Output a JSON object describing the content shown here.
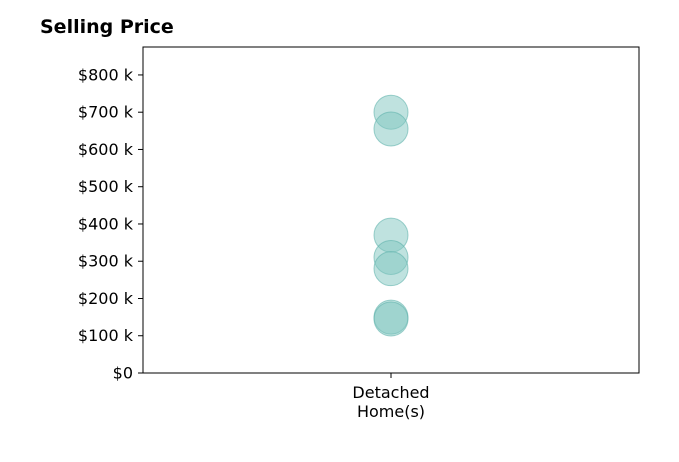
{
  "chart_data": {
    "type": "scatter",
    "title": "Selling Price",
    "xlabel": "",
    "ylabel": "",
    "categories": [
      [
        "Detached",
        "Home(s)"
      ]
    ],
    "series": [
      {
        "category_index": 0,
        "values": [
          700000,
          655000,
          370000,
          310000,
          280000,
          150000,
          145000
        ]
      }
    ],
    "yticks": [
      0,
      100000,
      200000,
      300000,
      400000,
      500000,
      600000,
      700000,
      800000
    ],
    "ytick_labels": [
      "$0",
      "$100 k",
      "$200 k",
      "$300 k",
      "$400 k",
      "$500 k",
      "$600 k",
      "$700 k",
      "$800 k"
    ],
    "ylim": [
      0,
      875000
    ],
    "grid": false,
    "legend": "none",
    "marker_color": "#80c6c0",
    "marker_edge_color": "#5fb3ac",
    "marker_opacity": 0.5
  }
}
